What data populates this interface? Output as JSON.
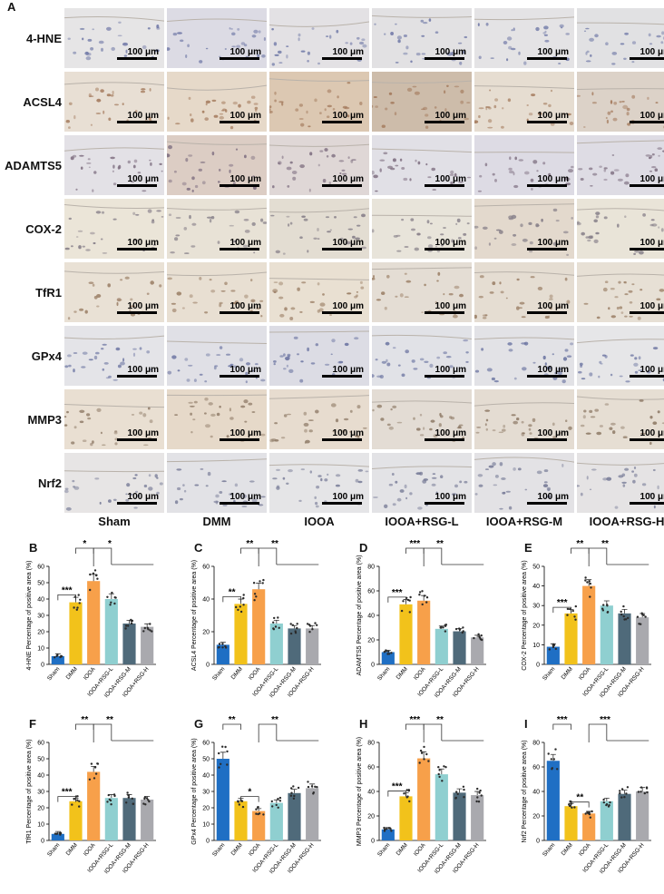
{
  "panel_A": {
    "letter": "A",
    "row_labels": [
      "4-HNE",
      "ACSL4",
      "ADAMTS5",
      "COX-2",
      "TfR1",
      "GPx4",
      "MMP3",
      "Nrf2"
    ],
    "column_labels": [
      "Sham",
      "DMM",
      "IOOA",
      "IOOA+RSG-L",
      "IOOA+RSG-M",
      "IOOA+RSG-H"
    ],
    "scale_bar_label": "100 μm"
  },
  "colors": {
    "Sham": "#1f6fc4",
    "DMM": "#f2c21b",
    "IOOA": "#f7a04a",
    "IOOA+RSG-L": "#8fcfd0",
    "IOOA+RSG-M": "#4f6a7a",
    "IOOA+RSG-H": "#a9a9ae"
  },
  "chart_data": [
    {
      "letter": "B",
      "type": "bar",
      "ylabel": "4-HNE Percentage of positive area (%)",
      "ylim": [
        0,
        60
      ],
      "yticks": [
        0,
        10,
        20,
        30,
        40,
        50,
        60
      ],
      "categories": [
        "Sham",
        "DMM",
        "IOOA",
        "IOOA+RSG-L",
        "IOOA+RSG-M",
        "IOOA+RSG-H"
      ],
      "values": [
        5,
        38,
        51,
        40,
        25,
        23
      ],
      "sig": [
        {
          "label": "***",
          "a": 0,
          "b": 1,
          "lvl": 1
        },
        {
          "label": "*",
          "a": 1,
          "b": 2,
          "lvl": 2
        },
        {
          "label": "*",
          "a": 2,
          "b": 4,
          "lvl": 2
        }
      ]
    },
    {
      "letter": "C",
      "type": "bar",
      "ylabel": "ACSL4 Percentage of positive area (%)",
      "ylim": [
        0,
        60
      ],
      "yticks": [
        0,
        20,
        40,
        60
      ],
      "categories": [
        "Sham",
        "DMM",
        "IOOA",
        "IOOA+RSG-L",
        "IOOA+RSG-M",
        "IOOA+RSG-H"
      ],
      "values": [
        12,
        37,
        46,
        25,
        22,
        22
      ],
      "sig": [
        {
          "label": "**",
          "a": 0,
          "b": 1,
          "lvl": 1
        },
        {
          "label": "**",
          "a": 1,
          "b": 2,
          "lvl": 2
        },
        {
          "label": "**",
          "a": 2,
          "b": 4,
          "lvl": 2
        }
      ]
    },
    {
      "letter": "D",
      "type": "bar",
      "ylabel": "ADAMTS5 Percentage of positive area (%)",
      "ylim": [
        0,
        80
      ],
      "yticks": [
        0,
        20,
        40,
        60,
        80
      ],
      "categories": [
        "Sham",
        "DMM",
        "IOOA",
        "IOOA+RSG-L",
        "IOOA+RSG-M",
        "IOOA+RSG-H"
      ],
      "values": [
        10,
        49,
        52,
        29,
        27,
        22
      ],
      "sig": [
        {
          "label": "***",
          "a": 0,
          "b": 1,
          "lvl": 1
        },
        {
          "label": "***",
          "a": 1,
          "b": 2,
          "lvl": 2
        },
        {
          "label": "**",
          "a": 2,
          "b": 4,
          "lvl": 2
        }
      ]
    },
    {
      "letter": "E",
      "type": "bar",
      "ylabel": "COX-2 Percentage of positive area (%)",
      "ylim": [
        0,
        50
      ],
      "yticks": [
        0,
        10,
        20,
        30,
        40,
        50
      ],
      "categories": [
        "Sham",
        "DMM",
        "IOOA",
        "IOOA+RSG-L",
        "IOOA+RSG-M",
        "IOOA+RSG-H"
      ],
      "values": [
        9,
        26,
        40,
        30,
        26,
        24
      ],
      "sig": [
        {
          "label": "***",
          "a": 0,
          "b": 1,
          "lvl": 1
        },
        {
          "label": "**",
          "a": 1,
          "b": 2,
          "lvl": 2
        },
        {
          "label": "**",
          "a": 2,
          "b": 4,
          "lvl": 2
        }
      ]
    },
    {
      "letter": "F",
      "type": "bar",
      "ylabel": "TfR1 Percentage of positive area (%)",
      "ylim": [
        0,
        60
      ],
      "yticks": [
        0,
        10,
        20,
        30,
        40,
        50,
        60
      ],
      "categories": [
        "Sham",
        "DMM",
        "IOOA",
        "IOOA+RSG-L",
        "IOOA+RSG-M",
        "IOOA+RSG-H"
      ],
      "values": [
        4,
        24,
        42,
        26,
        26,
        25
      ],
      "sig": [
        {
          "label": "***",
          "a": 0,
          "b": 1,
          "lvl": 1
        },
        {
          "label": "**",
          "a": 1,
          "b": 2,
          "lvl": 2
        },
        {
          "label": "**",
          "a": 2,
          "b": 4,
          "lvl": 2
        }
      ]
    },
    {
      "letter": "G",
      "type": "bar",
      "ylabel": "GPx4 Percentage of positive area (%)",
      "ylim": [
        0,
        60
      ],
      "yticks": [
        0,
        10,
        20,
        30,
        40,
        50,
        60
      ],
      "categories": [
        "Sham",
        "DMM",
        "IOOA",
        "IOOA+RSG-L",
        "IOOA+RSG-M",
        "IOOA+RSG-H"
      ],
      "values": [
        50,
        24,
        18,
        23,
        29,
        32
      ],
      "sig": [
        {
          "label": "**",
          "a": 0,
          "b": 1,
          "lvl": 2
        },
        {
          "label": "*",
          "a": 1,
          "b": 2,
          "lvl": 1
        },
        {
          "label": "**",
          "a": 2,
          "b": 4,
          "lvl": 2
        }
      ]
    },
    {
      "letter": "H",
      "type": "bar",
      "ylabel": "MMP3 Percentage of positive area (%)",
      "ylim": [
        0,
        80
      ],
      "yticks": [
        0,
        20,
        40,
        60,
        80
      ],
      "categories": [
        "Sham",
        "DMM",
        "IOOA",
        "IOOA+RSG-L",
        "IOOA+RSG-M",
        "IOOA+RSG-H"
      ],
      "values": [
        9,
        36,
        67,
        54,
        39,
        37
      ],
      "sig": [
        {
          "label": "***",
          "a": 0,
          "b": 1,
          "lvl": 1
        },
        {
          "label": "***",
          "a": 1,
          "b": 2,
          "lvl": 2
        },
        {
          "label": "**",
          "a": 2,
          "b": 4,
          "lvl": 2
        }
      ]
    },
    {
      "letter": "I",
      "type": "bar",
      "ylabel": "Nrf2 Percentage of positive area (%)",
      "ylim": [
        0,
        80
      ],
      "yticks": [
        0,
        20,
        40,
        60,
        80
      ],
      "categories": [
        "Sham",
        "DMM",
        "IOOA",
        "IOOA+RSG-L",
        "IOOA+RSG-M",
        "IOOA+RSG-H"
      ],
      "values": [
        65,
        28,
        22,
        32,
        38,
        40
      ],
      "sig": [
        {
          "label": "***",
          "a": 0,
          "b": 1,
          "lvl": 2
        },
        {
          "label": "**",
          "a": 1,
          "b": 2,
          "lvl": 1
        },
        {
          "label": "***",
          "a": 2,
          "b": 4,
          "lvl": 2
        }
      ]
    }
  ]
}
